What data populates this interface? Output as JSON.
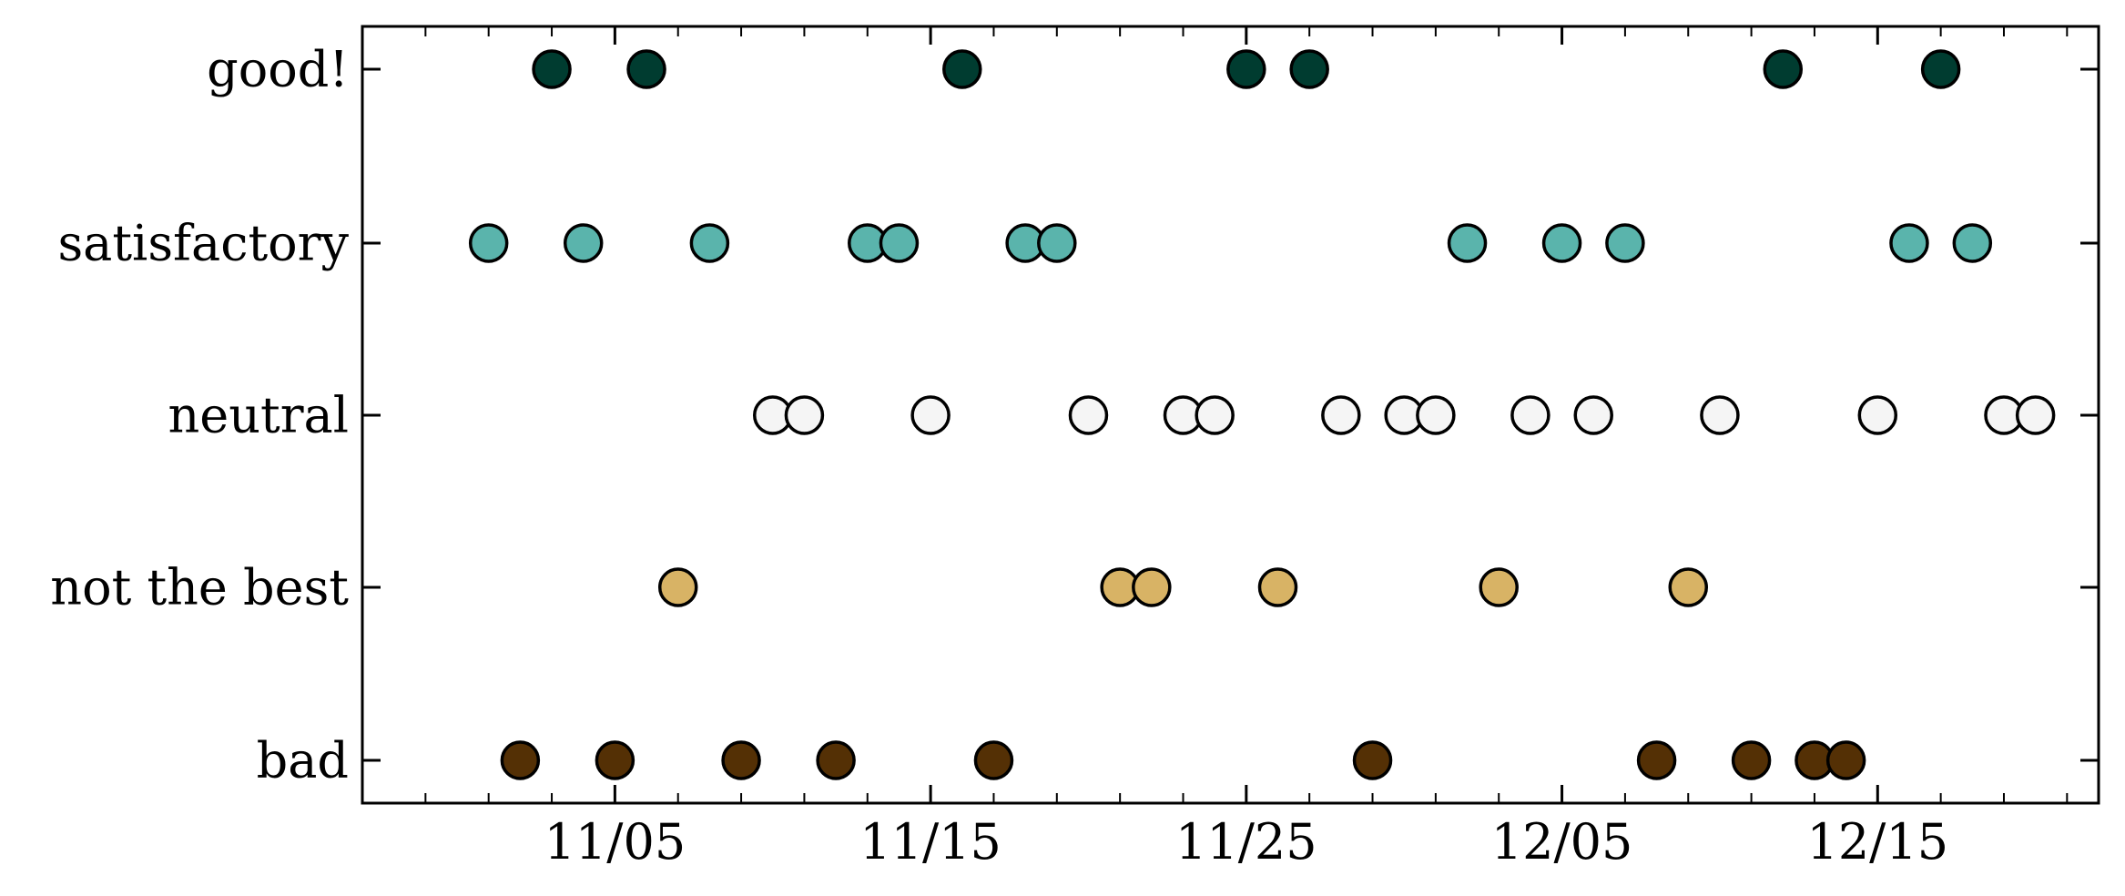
{
  "chart_data": {
    "type": "scatter",
    "title": "",
    "xlabel": "",
    "ylabel": "",
    "x_axis": {
      "kind": "date",
      "range": [
        "2024-10-28",
        "2024-12-22"
      ],
      "ticks": [
        {
          "date": "2024-11-05",
          "label": "11/05"
        },
        {
          "date": "2024-11-15",
          "label": "11/15"
        },
        {
          "date": "2024-11-25",
          "label": "11/25"
        },
        {
          "date": "2024-12-05",
          "label": "12/05"
        },
        {
          "date": "2024-12-15",
          "label": "12/15"
        }
      ]
    },
    "categories": [
      "bad",
      "not the best",
      "neutral",
      "satisfactory",
      "good!"
    ],
    "grid": false,
    "series": [
      {
        "category": "good!",
        "color": "#003c30",
        "x": [
          "2024-11-03",
          "2024-11-06",
          "2024-11-16",
          "2024-11-25",
          "2024-11-27",
          "2024-12-12",
          "2024-12-17"
        ]
      },
      {
        "category": "satisfactory",
        "color": "#5ab4ac",
        "x": [
          "2024-11-01",
          "2024-11-04",
          "2024-11-08",
          "2024-11-13",
          "2024-11-14",
          "2024-11-18",
          "2024-11-19",
          "2024-12-02",
          "2024-12-05",
          "2024-12-07",
          "2024-12-16",
          "2024-12-18"
        ]
      },
      {
        "category": "neutral",
        "color": "#f5f5f5",
        "x": [
          "2024-11-10",
          "2024-11-11",
          "2024-11-15",
          "2024-11-20",
          "2024-11-23",
          "2024-11-24",
          "2024-11-28",
          "2024-11-30",
          "2024-12-01",
          "2024-12-04",
          "2024-12-06",
          "2024-12-10",
          "2024-12-15",
          "2024-12-19",
          "2024-12-20"
        ]
      },
      {
        "category": "not the best",
        "color": "#d8b365",
        "x": [
          "2024-11-07",
          "2024-11-21",
          "2024-11-22",
          "2024-11-26",
          "2024-12-03",
          "2024-12-09"
        ]
      },
      {
        "category": "bad",
        "color": "#543005",
        "x": [
          "2024-11-02",
          "2024-11-05",
          "2024-11-09",
          "2024-11-12",
          "2024-11-17",
          "2024-11-29",
          "2024-12-08",
          "2024-12-11",
          "2024-12-13",
          "2024-12-14"
        ]
      }
    ]
  }
}
